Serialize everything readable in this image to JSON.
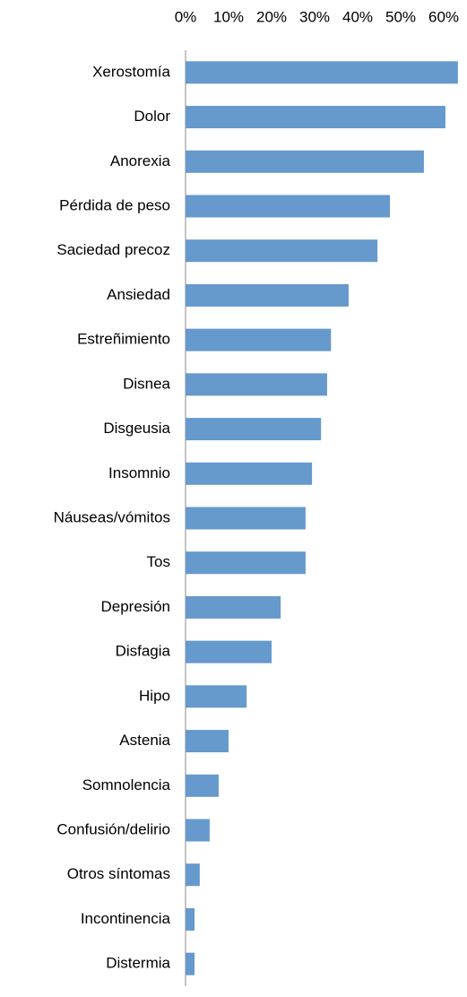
{
  "chart_data": {
    "type": "barh",
    "categories": [
      "Xerostomía",
      "Dolor",
      "Anorexia",
      "Pérdida de peso",
      "Saciedad precoz",
      "Ansiedad",
      "Estreñimiento",
      "Disnea",
      "Disgeusia",
      "Insomnio",
      "Náuseas/vómitos",
      "Tos",
      "Depresión",
      "Disfagia",
      "Hipo",
      "Astenia",
      "Somnolencia",
      "Confusión/delirio",
      "Otros síntomas",
      "Incontinencia",
      "Distermia"
    ],
    "values": [
      63.3,
      60.4,
      55.4,
      47.5,
      44.6,
      37.9,
      33.8,
      32.9,
      31.5,
      29.4,
      27.9,
      27.9,
      22.1,
      20,
      14.2,
      10,
      7.7,
      5.6,
      3.3,
      2.1,
      2.1
    ],
    "color": "#6699cc",
    "xlim": [
      0,
      63.5
    ],
    "xticks": [
      {
        "value": 0,
        "label": "0%"
      },
      {
        "value": 10,
        "label": "10%"
      },
      {
        "value": 20,
        "label": "20%"
      },
      {
        "value": 30,
        "label": "30%"
      },
      {
        "value": 40,
        "label": "40%"
      },
      {
        "value": 50,
        "label": "50%"
      },
      {
        "value": 60,
        "label": "60%"
      }
    ],
    "grid": false
  }
}
